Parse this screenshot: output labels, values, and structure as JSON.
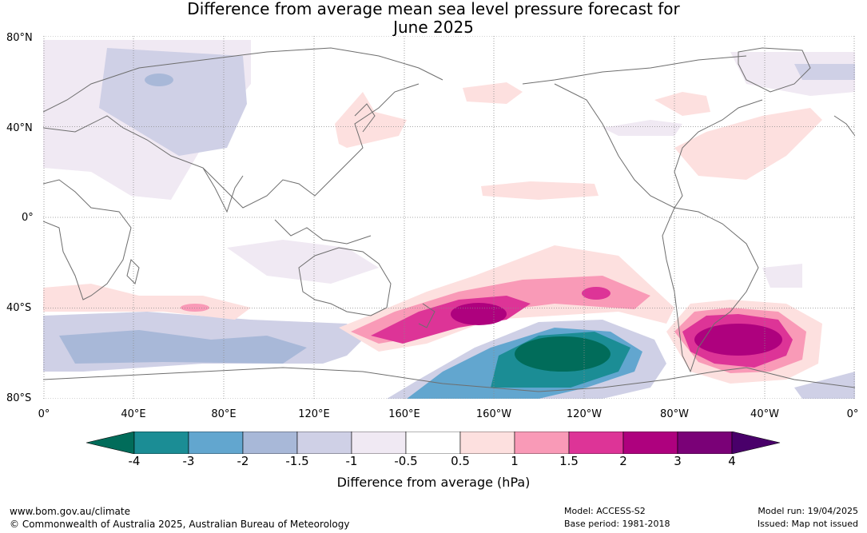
{
  "title": {
    "line1": "Difference from average mean sea level pressure forecast for",
    "line2": "June 2025"
  },
  "map": {
    "lat_labels": [
      "80°N",
      "40°N",
      "0°",
      "40°S",
      "80°S"
    ],
    "lon_labels": [
      "0°",
      "40°E",
      "80°E",
      "120°E",
      "160°E",
      "160°W",
      "120°W",
      "80°W",
      "40°W",
      "0°"
    ],
    "projection": "equirectangular, 0° to 360°",
    "gridlines": "dotted, every 40°",
    "coastlines": "grey"
  },
  "legend": {
    "title": "Difference from average (hPa)",
    "ticks": [
      "-4",
      "-3",
      "-2",
      "-1.5",
      "-1",
      "-0.5",
      "0.5",
      "1",
      "1.5",
      "2",
      "3",
      "4"
    ],
    "colors": [
      "#016c5a",
      "#1b8d95",
      "#62a6cf",
      "#a8b8d8",
      "#cfd0e6",
      "#f0e9f3",
      "#ffffff",
      "#fde0df",
      "#f99ab7",
      "#dd3497",
      "#ae017e",
      "#7a0177",
      "#49006a"
    ],
    "extends": "both ends (triangular arrows)"
  },
  "footer": {
    "url": "www.bom.gov.au/climate",
    "copyright": "© Commonwealth of Australia 2025, Australian Bureau of Meteorology",
    "model": "Model: ACCESS-S2",
    "base_period": "Base period: 1981-2018",
    "model_run": "Model run: 19/04/2025",
    "issued": "Issued: Map not issued"
  }
}
